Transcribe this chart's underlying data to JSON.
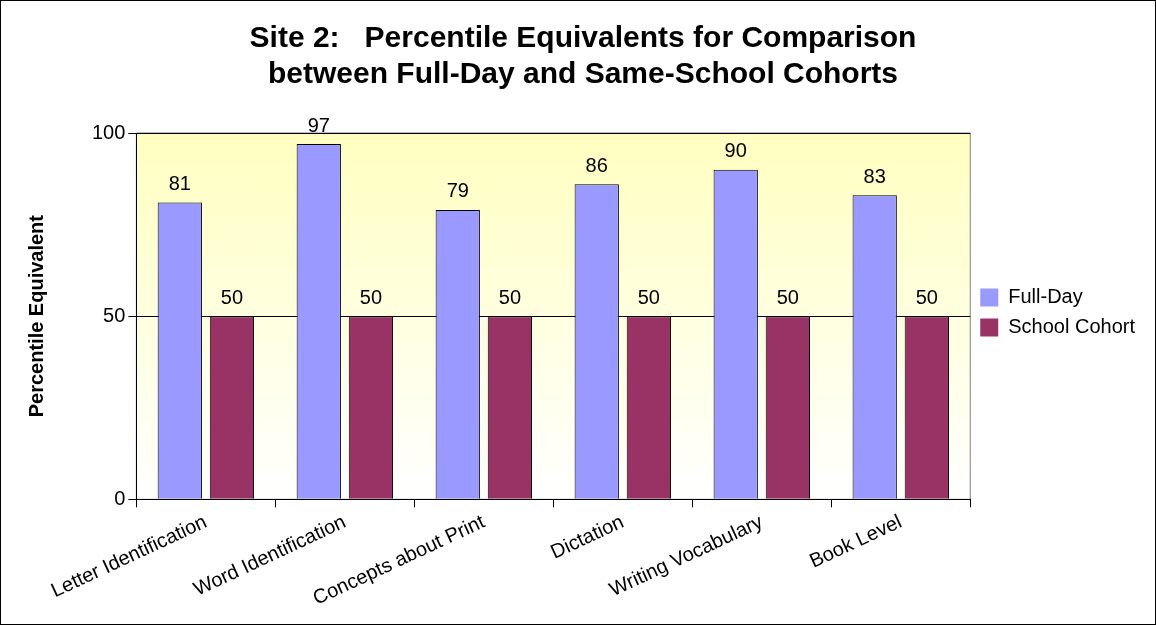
{
  "chart_data": {
    "type": "bar",
    "title": "Site 2:   Percentile Equivalents for Comparison between Full-Day and Same-School Cohorts",
    "ylabel": "Percentile Equivalent",
    "categories": [
      "Letter Identification",
      "Word Identification",
      "Concepts about Print",
      "Dictation",
      "Writing Vocabulary",
      "Book Level"
    ],
    "series": [
      {
        "name": "Full-Day",
        "color": "#9999ff",
        "values": [
          81,
          97,
          79,
          86,
          90,
          83
        ]
      },
      {
        "name": "School Cohort",
        "color": "#993366",
        "values": [
          50,
          50,
          50,
          50,
          50,
          50
        ]
      }
    ],
    "ylim": [
      0,
      100
    ],
    "yticks": [
      0,
      50,
      100
    ],
    "grid": "y",
    "legend": "right",
    "data_labels": true
  }
}
